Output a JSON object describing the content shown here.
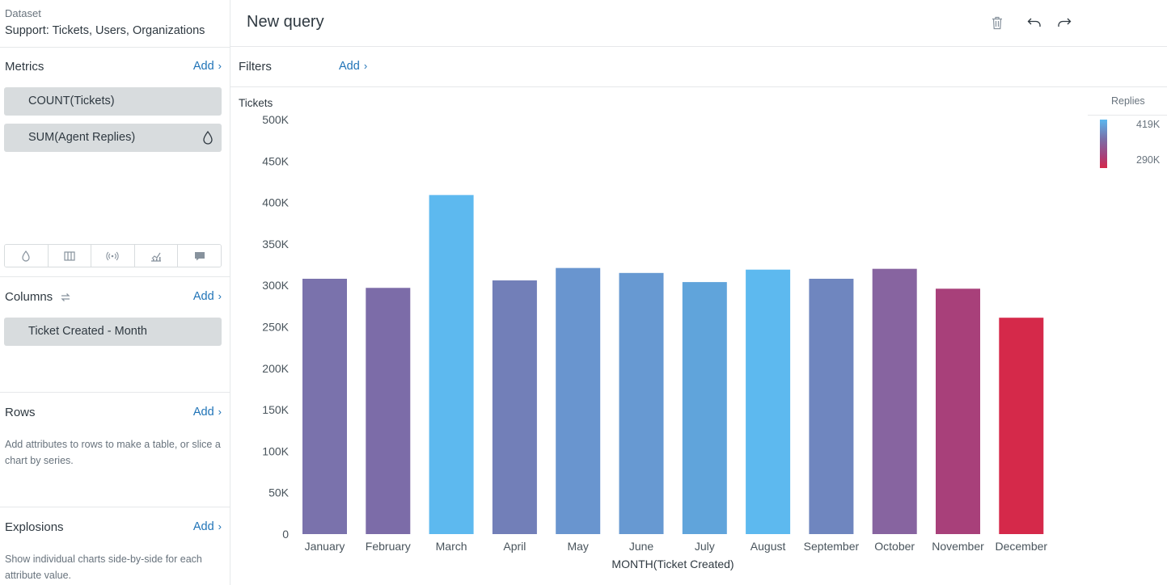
{
  "sidebar": {
    "dataset_label": "Dataset",
    "dataset_name": "Support: Tickets, Users, Organizations",
    "metrics": {
      "title": "Metrics",
      "add_label": "Add",
      "items": [
        "COUNT(Tickets)",
        "SUM(Agent Replies)"
      ]
    },
    "visual_tools": [
      "color-drop-icon",
      "table-columns-icon",
      "signal-icon",
      "trend-chart-icon",
      "comment-icon"
    ],
    "columns": {
      "title": "Columns",
      "add_label": "Add",
      "items": [
        "Ticket Created - Month"
      ]
    },
    "rows": {
      "title": "Rows",
      "add_label": "Add",
      "help": "Add attributes to rows to make a table, or slice a chart by series."
    },
    "explosions": {
      "title": "Explosions",
      "add_label": "Add",
      "help": "Show individual charts side-by-side for each attribute value."
    }
  },
  "header": {
    "title": "New query",
    "icons": [
      "trash-icon",
      "undo-icon",
      "redo-icon"
    ]
  },
  "filters": {
    "label": "Filters",
    "add_label": "Add"
  },
  "legend": {
    "title": "Replies",
    "max_label": "419K",
    "min_label": "290K",
    "colors": [
      "#5bb7ef",
      "#7a6fa8",
      "#a8407a",
      "#d5294a"
    ]
  },
  "chart_data": {
    "type": "bar",
    "ylabel": "Tickets",
    "xlabel": "MONTH(Ticket Created)",
    "ylim": [
      0,
      500000
    ],
    "ytick_labels": [
      "0",
      "50K",
      "100K",
      "150K",
      "200K",
      "250K",
      "300K",
      "350K",
      "400K",
      "450K",
      "500K"
    ],
    "categories": [
      "January",
      "February",
      "March",
      "April",
      "May",
      "June",
      "July",
      "August",
      "September",
      "October",
      "November",
      "December"
    ],
    "values": [
      308000,
      297000,
      409000,
      306000,
      321000,
      315000,
      304000,
      319000,
      308000,
      320000,
      296000,
      261000
    ],
    "colors": [
      "#7a72ac",
      "#7c6ca8",
      "#5db9ef",
      "#727fb8",
      "#6995cf",
      "#6799d2",
      "#60a4db",
      "#5db9ef",
      "#6f86bf",
      "#8764a0",
      "#a8407a",
      "#d5294a"
    ]
  }
}
